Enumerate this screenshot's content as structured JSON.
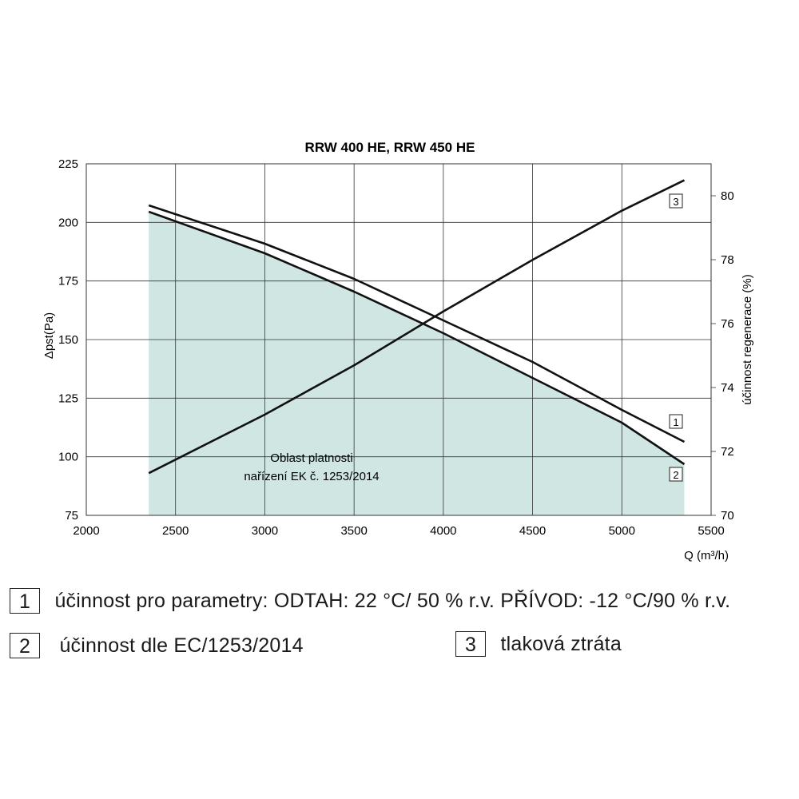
{
  "chart_data": {
    "type": "line",
    "title": "RRW 400 HE, RRW 450 HE",
    "xlabel": "Q (m³/h)",
    "ylabel_left": "Δpst(Pa)",
    "ylabel_right": "účinnost regenerace (%)",
    "xlim": [
      2000,
      5500
    ],
    "ylim_left": [
      75,
      225
    ],
    "ylim_right": [
      70,
      81
    ],
    "x_ticks": [
      2000,
      2500,
      3000,
      3500,
      4000,
      4500,
      5000,
      5500
    ],
    "y_ticks_left": [
      75,
      100,
      125,
      150,
      175,
      200,
      225
    ],
    "y_ticks_right": [
      70,
      72,
      74,
      76,
      78,
      80
    ],
    "grid": true,
    "series": [
      {
        "label": "1",
        "axis": "right",
        "x": [
          2350,
          3000,
          3500,
          4000,
          4500,
          5000,
          5350
        ],
        "y": [
          79.7,
          78.5,
          77.4,
          76.1,
          74.8,
          73.3,
          72.3
        ]
      },
      {
        "label": "2",
        "axis": "right",
        "x": [
          2350,
          3000,
          3500,
          4000,
          4500,
          5000,
          5350
        ],
        "y": [
          79.5,
          78.2,
          77.0,
          75.7,
          74.3,
          72.9,
          71.6
        ]
      },
      {
        "label": "3",
        "axis": "left",
        "x": [
          2350,
          3000,
          3500,
          4000,
          4500,
          5000,
          5350
        ],
        "y": [
          93,
          118,
          139,
          162,
          184,
          205,
          218
        ]
      }
    ],
    "validity_area": {
      "label_line1": "Oblast platnosti",
      "label_line2": "nařízení EK č. 1253/2014",
      "x_range": [
        2350,
        5350
      ]
    }
  },
  "legend": [
    {
      "number": "1",
      "text": "účinnost pro parametry: ODTAH: 22 °C/ 50 % r.v. PŘÍVOD: -12 °C/90 % r.v."
    },
    {
      "number": "2",
      "text": "účinnost dle EC/1253/2014"
    },
    {
      "number": "3",
      "text": "tlaková ztráta"
    }
  ],
  "colors": {
    "area": "#cfe6e3",
    "line": "#111111",
    "grid": "#333333"
  }
}
